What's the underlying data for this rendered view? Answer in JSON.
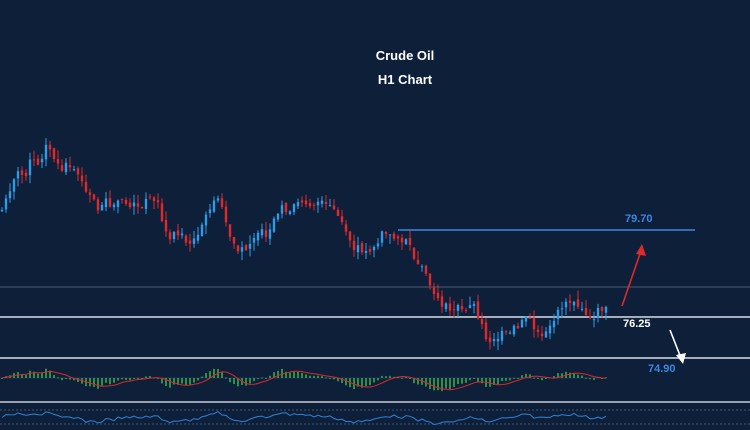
{
  "chart_data": {
    "type": "candlestick",
    "title": "Crude Oil",
    "subtitle": "H1 Chart",
    "colors": {
      "background": "#0e1f3a",
      "up": "#2f9be6",
      "down": "#e02a2a",
      "resistance": "#3d86e0",
      "support": "#d8dde6",
      "histogram": "#2e8f48",
      "signal": "#d62a2a",
      "rsi_line": "#2f83d6",
      "arrow_up": "#e02a2a",
      "arrow_down": "#ffffff"
    },
    "levels": [
      {
        "label": "79.70",
        "value": 79.7,
        "color": "#3d86e0"
      },
      {
        "label": "76.25",
        "value": 76.25,
        "color": "#d8dde6"
      },
      {
        "label": "74.90",
        "value": 74.9,
        "color": "#3d86e0"
      }
    ],
    "closes": [
      80.5,
      81.3,
      82.1,
      81.8,
      82.5,
      82.3,
      83.0,
      82.7,
      82.1,
      82.4,
      82.0,
      81.7,
      80.9,
      80.6,
      80.8,
      80.7,
      80.9,
      80.8,
      80.6,
      80.7,
      81.1,
      80.9,
      79.8,
      79.4,
      79.6,
      79.2,
      79.3,
      79.7,
      80.5,
      81.1,
      80.7,
      79.4,
      78.8,
      78.9,
      79.3,
      79.7,
      79.4,
      80.3,
      80.6,
      80.5,
      80.7,
      80.6,
      80.5,
      80.8,
      80.9,
      80.6,
      80.2,
      79.3,
      78.9,
      79.0,
      78.8,
      79.3,
      79.6,
      79.3,
      79.4,
      79.2,
      78.6,
      78.4,
      77.5,
      76.9,
      76.7,
      76.6,
      76.9,
      76.5,
      76.7,
      76.1,
      75.3,
      75.4,
      75.8,
      75.7,
      75.9,
      76.5,
      76.0,
      75.6,
      75.7,
      76.3,
      76.6,
      76.9,
      76.6,
      76.5,
      76.2,
      76.5,
      76.8
    ]
  }
}
